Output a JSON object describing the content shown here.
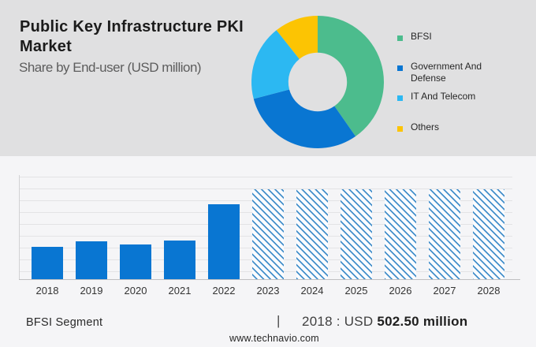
{
  "header": {
    "title": "Public Key Infrastructure PKI Market",
    "title_lines": [
      "Public Key Infrastructure PKI",
      "Market"
    ],
    "subtitle": "Share by End-user (USD million)"
  },
  "colors": {
    "top_panel_bg": "#e0e0e1",
    "bottom_panel_bg": "#f5f5f7",
    "green": "#4cbc8d",
    "dark_blue": "#0976d2",
    "light_blue": "#2cb8f2",
    "yellow": "#fcc403",
    "hatch_blue": "#3285c6"
  },
  "chart_data": [
    {
      "type": "pie",
      "subtype": "donut",
      "title": "Share by End-user (USD million)",
      "legend_position": "right",
      "segments": [
        {
          "label": "BFSI",
          "percent": 40.3,
          "color": "#4cbc8d"
        },
        {
          "label": "Government And Defense",
          "percent": 30.6,
          "color": "#0976d2"
        },
        {
          "label": "IT And Telecom",
          "percent": 18.4,
          "color": "#2cb8f2"
        },
        {
          "label": "Others",
          "percent": 10.7,
          "color": "#fcc403"
        }
      ],
      "legend_labels": [
        {
          "lines": [
            "BFSI"
          ]
        },
        {
          "lines": [
            "Government And",
            "Defense"
          ]
        },
        {
          "lines": [
            "IT And Telecom"
          ]
        },
        {
          "lines": [
            "Others"
          ]
        }
      ]
    },
    {
      "type": "bar",
      "title": "",
      "xlabel": "",
      "ylabel": "",
      "grid": true,
      "categories": [
        "2018",
        "2019",
        "2020",
        "2021",
        "2022",
        "2023",
        "2024",
        "2025",
        "2026",
        "2027",
        "2028"
      ],
      "values": [
        502.5,
        580,
        535,
        594,
        1152,
        1384,
        1384,
        1384,
        1384,
        1384,
        1384
      ],
      "unit": "USD million",
      "labeled_point": {
        "year": "2018",
        "value": "502.50"
      },
      "forecast_from_index": 5,
      "bar_styles": [
        "solid",
        "solid",
        "solid",
        "solid",
        "solid",
        "hatched",
        "hatched",
        "hatched",
        "hatched",
        "hatched",
        "hatched"
      ]
    }
  ],
  "footer": {
    "segment_label": "BFSI Segment",
    "separator": "|",
    "value_prefix": "2018 : USD ",
    "value_bold": "502.50 million",
    "website": "www.technavio.com"
  }
}
